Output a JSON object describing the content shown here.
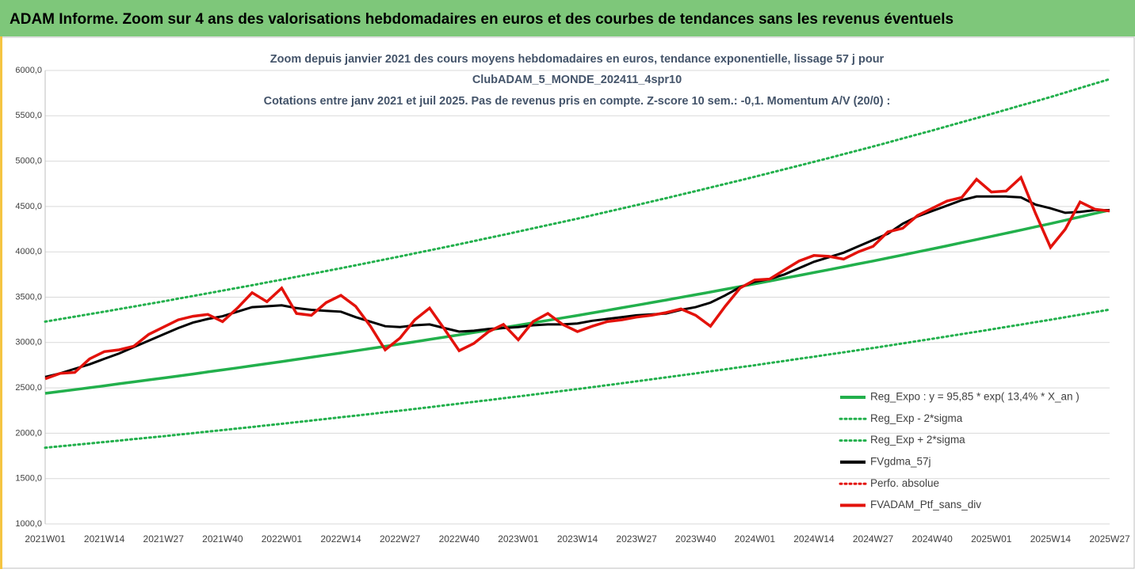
{
  "header": {
    "title": "ADAM Informe. Zoom sur 4 ans des valorisations hebdomadaires en euros et des courbes de tendances sans les revenus éventuels"
  },
  "chart_data": {
    "type": "line",
    "title": [
      "Zoom depuis janvier 2021 des cours moyens hebdomadaires  en euros, tendance exponentielle, lissage 57 j pour",
      "ClubADAM_5_MONDE_202411_4spr10",
      "Cotations entre janv 2021 et juil 2025. Pas de revenus pris en compte. Z-score 10 sem.: -0,1. Momentum A/V (20/0) :"
    ],
    "categories": [
      "2021W01",
      null,
      null,
      null,
      "2021W14",
      null,
      null,
      null,
      "2021W27",
      null,
      null,
      null,
      "2021W40",
      null,
      null,
      null,
      "2022W01",
      null,
      null,
      null,
      "2022W14",
      null,
      null,
      null,
      "2022W27",
      null,
      null,
      null,
      "2022W40",
      null,
      null,
      null,
      "2023W01",
      null,
      null,
      null,
      "2023W14",
      null,
      null,
      null,
      "2023W27",
      null,
      null,
      null,
      "2023W40",
      null,
      null,
      null,
      "2024W01",
      null,
      null,
      null,
      "2024W14",
      null,
      null,
      null,
      "2024W27",
      null,
      null,
      null,
      "2024W40",
      null,
      null,
      null,
      "2025W01",
      null,
      null,
      null,
      "2025W14",
      null,
      null,
      null,
      "2025W27"
    ],
    "ylim": [
      1000,
      6000
    ],
    "yticks": [
      {
        "value": 1000,
        "label": "1000,0"
      },
      {
        "value": 1500,
        "label": "1500,0"
      },
      {
        "value": 2000,
        "label": "2000,0"
      },
      {
        "value": 2500,
        "label": "2500,0"
      },
      {
        "value": 3000,
        "label": "3000,0"
      },
      {
        "value": 3500,
        "label": "3500,0"
      },
      {
        "value": 4000,
        "label": "4000,0"
      },
      {
        "value": 4500,
        "label": "4500,0"
      },
      {
        "value": 5000,
        "label": "5000,0"
      },
      {
        "value": 5500,
        "label": "5500,0"
      },
      {
        "value": 6000,
        "label": "6000,0"
      }
    ],
    "grid": true,
    "legend": "lower right",
    "series": [
      {
        "name": "Reg_Expo : y = 95,85 * exp( 13,4% *  X_an )",
        "color": "#22b04c",
        "dash": "solid",
        "values": [
          2440,
          2461,
          2481,
          2502,
          2523,
          2545,
          2566,
          2588,
          2609,
          2631,
          2653,
          2676,
          2698,
          2721,
          2744,
          2767,
          2790,
          2814,
          2838,
          2861,
          2885,
          2909,
          2934,
          2958,
          2983,
          3008,
          3034,
          3059,
          3085,
          3111,
          3137,
          3164,
          3190,
          3217,
          3244,
          3271,
          3298,
          3326,
          3354,
          3383,
          3411,
          3440,
          3469,
          3498,
          3527,
          3557,
          3587,
          3617,
          3647,
          3678,
          3709,
          3740,
          3771,
          3803,
          3835,
          3867,
          3899,
          3932,
          3965,
          3999,
          4032,
          4066,
          4101,
          4135,
          4170,
          4205,
          4240,
          4276,
          4311,
          4348,
          4386,
          4423,
          4460
        ]
      },
      {
        "name": "Reg_Exp - 2*sigma",
        "color": "#22b04c",
        "dash": "dotted",
        "values": [
          1840,
          1856,
          1872,
          1887,
          1903,
          1919,
          1935,
          1951,
          1967,
          1984,
          2001,
          2018,
          2035,
          2052,
          2069,
          2087,
          2104,
          2122,
          2140,
          2158,
          2176,
          2194,
          2212,
          2231,
          2249,
          2268,
          2287,
          2307,
          2326,
          2346,
          2366,
          2386,
          2406,
          2426,
          2446,
          2467,
          2487,
          2508,
          2530,
          2551,
          2572,
          2594,
          2616,
          2638,
          2660,
          2683,
          2705,
          2728,
          2750,
          2774,
          2797,
          2821,
          2844,
          2868,
          2892,
          2916,
          2940,
          2965,
          2990,
          3016,
          3041,
          3067,
          3093,
          3119,
          3145,
          3172,
          3198,
          3225,
          3251,
          3279,
          3307,
          3335,
          3363
        ]
      },
      {
        "name": "Reg_Exp + 2*sigma",
        "color": "#22b04c",
        "dash": "dotted",
        "values": [
          3230,
          3258,
          3285,
          3313,
          3340,
          3369,
          3397,
          3426,
          3454,
          3484,
          3513,
          3543,
          3572,
          3602,
          3632,
          3663,
          3693,
          3725,
          3756,
          3788,
          3819,
          3852,
          3884,
          3917,
          3949,
          3983,
          4017,
          4050,
          4084,
          4119,
          4154,
          4188,
          4223,
          4259,
          4295,
          4330,
          4366,
          4403,
          4441,
          4478,
          4515,
          4554,
          4592,
          4631,
          4669,
          4709,
          4749,
          4788,
          4828,
          4869,
          4910,
          4951,
          4992,
          5034,
          5077,
          5119,
          5161,
          5205,
          5250,
          5294,
          5338,
          5384,
          5429,
          5475,
          5520,
          5567,
          5614,
          5660,
          5707,
          5756,
          5806,
          5855,
          5904
        ]
      },
      {
        "name": "FVgdma_57j",
        "color": "#000000",
        "dash": "solid",
        "values": [
          2620,
          2660,
          2710,
          2760,
          2820,
          2880,
          2950,
          3020,
          3090,
          3160,
          3220,
          3260,
          3290,
          3340,
          3390,
          3400,
          3410,
          3380,
          3360,
          3350,
          3340,
          3280,
          3230,
          3180,
          3170,
          3190,
          3200,
          3160,
          3120,
          3130,
          3150,
          3160,
          3170,
          3190,
          3200,
          3200,
          3210,
          3240,
          3260,
          3280,
          3300,
          3310,
          3320,
          3360,
          3390,
          3440,
          3520,
          3610,
          3670,
          3700,
          3750,
          3820,
          3890,
          3940,
          3990,
          4060,
          4130,
          4200,
          4310,
          4390,
          4450,
          4510,
          4570,
          4610,
          4610,
          4610,
          4600,
          4520,
          4480,
          4430,
          4440,
          4460,
          4460
        ]
      },
      {
        "name": "Perfo. absolue",
        "color": "#e3120b",
        "dash": "dotted",
        "values": [
          null,
          null,
          null,
          null,
          null,
          null,
          null,
          null,
          null,
          null,
          null,
          null,
          null,
          null,
          null,
          null,
          null,
          null,
          null,
          null,
          null,
          null,
          null,
          null,
          null,
          null,
          null,
          null,
          null,
          null,
          null,
          null,
          null,
          null,
          null,
          null,
          null,
          null,
          null,
          null,
          null,
          null,
          null,
          null,
          null,
          null,
          null,
          null,
          null,
          null,
          null,
          null,
          null,
          null,
          null,
          null,
          null,
          null,
          null,
          null,
          null,
          null,
          null,
          null,
          null,
          null,
          null,
          null,
          null,
          null,
          null,
          null,
          null
        ]
      },
      {
        "name": "FVADAM_Ptf_sans_div",
        "color": "#e3120b",
        "dash": "solid",
        "values": [
          2600,
          2660,
          2670,
          2820,
          2900,
          2920,
          2960,
          3090,
          3170,
          3250,
          3290,
          3310,
          3230,
          3380,
          3550,
          3450,
          3600,
          3320,
          3300,
          3440,
          3520,
          3400,
          3180,
          2920,
          3050,
          3250,
          3380,
          3150,
          2910,
          2990,
          3120,
          3200,
          3030,
          3230,
          3320,
          3200,
          3120,
          3180,
          3230,
          3250,
          3280,
          3300,
          3330,
          3370,
          3300,
          3180,
          3400,
          3600,
          3690,
          3700,
          3800,
          3900,
          3960,
          3950,
          3920,
          4000,
          4060,
          4220,
          4260,
          4400,
          4480,
          4560,
          4600,
          4800,
          4660,
          4670,
          4820,
          4420,
          4050,
          4250,
          4550,
          4470,
          4450
        ]
      }
    ]
  }
}
